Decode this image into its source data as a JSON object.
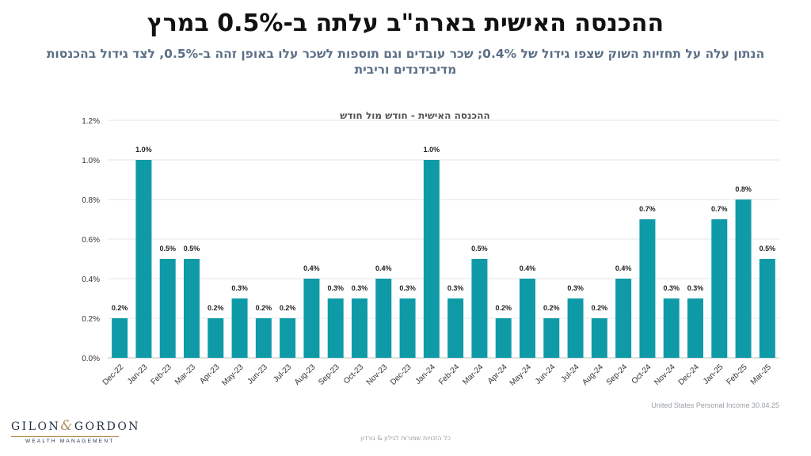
{
  "header": {
    "title": "ההכנסה האישית בארה\"ב עלתה ב-0.5% במרץ",
    "subtitle": "הנתון עלה על תחזיות השוק שצפו גידול של 0.4%; שכר עובדים וגם תוספות לשכר עלו באופן זהה ב-0.5%, לצד גידול בהכנסות מדיבידנדים וריבית"
  },
  "source": "United States Personal Income  30.04.25",
  "footer": "כל הזכויות שמורות לגילון & גורדון",
  "logo": {
    "name_left": "GILON",
    "ampersand": "&",
    "name_right": "GORDON",
    "tagline": "WEALTH MANAGEMENT"
  },
  "colors": {
    "bar": "#0f9aa8",
    "grid": "#e6e6e6",
    "text": "#333333",
    "title": "#111111",
    "subtitle": "#5b6f86",
    "brand_gold": "#b08d57"
  },
  "chart_data": {
    "type": "bar",
    "title": "ההכנסה האישית - חודש מול חודש",
    "xlabel": "",
    "ylabel": "",
    "ylim": [
      0,
      1.2
    ],
    "yticks": [
      "0.0%",
      "0.2%",
      "0.4%",
      "0.6%",
      "0.8%",
      "1.0%",
      "1.2%"
    ],
    "grid": true,
    "categories": [
      "Dec-22",
      "Jan-23",
      "Feb-23",
      "Mar-23",
      "Apr-23",
      "May-23",
      "Jun-23",
      "Jul-23",
      "Aug-23",
      "Sep-23",
      "Oct-23",
      "Nov-23",
      "Dec-23",
      "Jan-24",
      "Feb-24",
      "Mar-24",
      "Apr-24",
      "May-24",
      "Jun-24",
      "Jul-24",
      "Aug-24",
      "Sep-24",
      "Oct-24",
      "Nov-24",
      "Dec-24",
      "Jan-25",
      "Feb-25",
      "Mar-25"
    ],
    "values": [
      0.2,
      1.0,
      0.5,
      0.5,
      0.2,
      0.3,
      0.2,
      0.2,
      0.4,
      0.3,
      0.3,
      0.4,
      0.3,
      1.0,
      0.3,
      0.5,
      0.2,
      0.4,
      0.2,
      0.3,
      0.2,
      0.4,
      0.7,
      0.3,
      0.3,
      0.7,
      0.8,
      0.5
    ],
    "labels": [
      "0.2%",
      "1.0%",
      "0.5%",
      "0.5%",
      "0.2%",
      "0.3%",
      "0.2%",
      "0.2%",
      "0.4%",
      "0.3%",
      "0.3%",
      "0.4%",
      "0.3%",
      "1.0%",
      "0.3%",
      "0.5%",
      "0.2%",
      "0.4%",
      "0.2%",
      "0.3%",
      "0.2%",
      "0.4%",
      "0.7%",
      "0.3%",
      "0.3%",
      "0.7%",
      "0.8%",
      "0.5%"
    ]
  }
}
